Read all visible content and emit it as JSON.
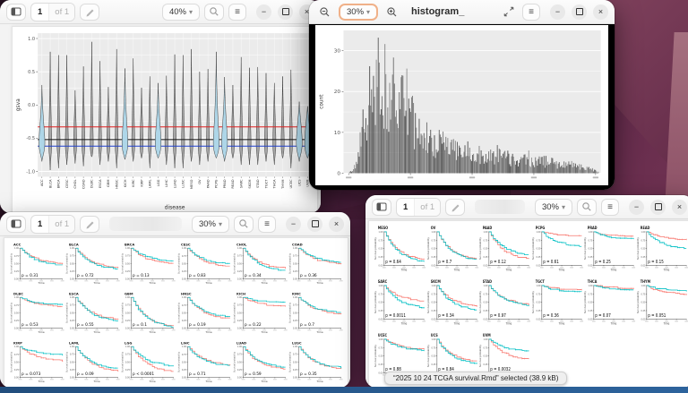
{
  "icons": {
    "caret": "▾",
    "menu": "≡",
    "minimize": "−",
    "close": "×",
    "zoom_out": "−",
    "zoom_in": "+"
  },
  "windows": {
    "violin_viewer": {
      "page": "1",
      "page_of": "of 1",
      "zoom": "40%"
    },
    "image_viewer": {
      "zoom": "30%",
      "title": "histogram_"
    },
    "km_viewer_1": {
      "page": "1",
      "page_of": "of 1",
      "zoom": "30%"
    },
    "km_viewer_2": {
      "page": "1",
      "page_of": "of 1",
      "zoom": "30%"
    }
  },
  "status_pill": {
    "text": "“2025 10 24 TCGA  survival.Rmd” selected (38.9 kB)"
  },
  "chart_data": [
    {
      "type": "violin",
      "title": "",
      "xlabel": "disease",
      "ylabel": "gsva",
      "ylim": [
        -1.08,
        1.08
      ],
      "yticks": [
        1.0,
        0.5,
        0.0,
        -0.5,
        -1.0
      ],
      "ytick_labels": [
        "1.0",
        "0.5",
        "0.0",
        "-0.5",
        "-1.0"
      ],
      "categories": [
        "ACC",
        "BLCA",
        "BRCA",
        "CESC",
        "CHOL",
        "COAD",
        "DLBC",
        "ESCA",
        "GBM",
        "HNSC",
        "KICH",
        "KIRC",
        "KIRP",
        "LAML",
        "LGG",
        "LIHC",
        "LUAD",
        "LUSC",
        "MESO",
        "OV",
        "PAAD",
        "PCPG",
        "PRAD",
        "READ",
        "SARC",
        "SKCM",
        "STAD",
        "TGCT",
        "THCA",
        "THYM",
        "UCEC",
        "UCS",
        "UVM"
      ],
      "max_values": [
        0.3,
        0.8,
        0.75,
        0.75,
        0.22,
        0.58,
        0.95,
        0.66,
        0.27,
        0.84,
        0.55,
        0.7,
        0.26,
        0.43,
        0.33,
        0.44,
        0.76,
        0.75,
        0.84,
        0.5,
        0.54,
        0.8,
        0.42,
        0.3,
        0.72,
        0.56,
        0.57,
        0.48,
        0.33,
        0.43,
        0.53,
        0.05,
        -0.02
      ],
      "min_values": [
        -0.85,
        -0.98,
        -0.95,
        -0.9,
        -0.88,
        -0.92,
        -0.78,
        -0.9,
        -0.85,
        -0.95,
        -0.82,
        -0.85,
        -0.8,
        -0.95,
        -0.8,
        -0.9,
        -0.95,
        -0.95,
        -0.85,
        -0.9,
        -0.85,
        -0.8,
        -0.85,
        -0.8,
        -0.9,
        -0.9,
        -0.9,
        -0.85,
        -0.9,
        -0.8,
        -0.95,
        -0.85,
        -0.8
      ],
      "highlighted": [
        "ACC",
        "KICH",
        "LGG",
        "PCPG",
        "PRAD",
        "UCS",
        "UVM"
      ],
      "highlight_fill": "#aed6e8",
      "violin_fill": "#8f8f8f",
      "panel_color": "#ebebeb",
      "hlines": [
        {
          "y": -0.33,
          "color": "#e02020"
        },
        {
          "y": -0.52,
          "color": "#111111"
        },
        {
          "y": -0.62,
          "color": "#2040cc"
        }
      ]
    },
    {
      "type": "histogram",
      "ylabel": "count",
      "yticks": [
        0,
        10,
        20,
        30
      ],
      "ylim": [
        0,
        35
      ],
      "bar_color": "#484848",
      "panel_color": "#ebebeb",
      "n_bins": 270,
      "shape": "right-skewed, peak ~34 at ~15% of x-range, long sparse tail to right edge",
      "envelope": [
        [
          0.02,
          0
        ],
        [
          0.05,
          3
        ],
        [
          0.07,
          13
        ],
        [
          0.09,
          21
        ],
        [
          0.11,
          27
        ],
        [
          0.13,
          31
        ],
        [
          0.155,
          34
        ],
        [
          0.17,
          30
        ],
        [
          0.19,
          29
        ],
        [
          0.22,
          26
        ],
        [
          0.25,
          21
        ],
        [
          0.28,
          17
        ],
        [
          0.32,
          13
        ],
        [
          0.36,
          11
        ],
        [
          0.4,
          9
        ],
        [
          0.45,
          8
        ],
        [
          0.5,
          7
        ],
        [
          0.55,
          6
        ],
        [
          0.6,
          6
        ],
        [
          0.65,
          5
        ],
        [
          0.7,
          5
        ],
        [
          0.75,
          4
        ],
        [
          0.8,
          4
        ],
        [
          0.85,
          3
        ],
        [
          0.9,
          3
        ],
        [
          0.94,
          2
        ],
        [
          0.975,
          1
        ],
        [
          1.0,
          0
        ]
      ]
    },
    {
      "type": "km_grid",
      "cols": 6,
      "ylabel": "Survival probability",
      "xlabel": "Time",
      "ytick_labels": [
        "1.00",
        "0.75",
        "0.50",
        "0.25",
        "0.00"
      ],
      "curve_colors": {
        "red": "#F8766D",
        "teal": "#00BFC4"
      },
      "plots": [
        {
          "title": "ACC",
          "p": "p = 0.31",
          "end_red": 0.52,
          "end_teal": 0.46
        },
        {
          "title": "BLCA",
          "p": "p = 0.72",
          "end_red": 0.38,
          "end_teal": 0.33
        },
        {
          "title": "BRCA",
          "p": "p = 0.13",
          "end_red": 0.5,
          "end_teal": 0.6
        },
        {
          "title": "CESC",
          "p": "p = 0.83",
          "end_red": 0.42,
          "end_teal": 0.5
        },
        {
          "title": "CHOL",
          "p": "p = 0.34",
          "end_red": 0.35,
          "end_teal": 0.28
        },
        {
          "title": "COAD",
          "p": "p = 0.36",
          "end_red": 0.5,
          "end_teal": 0.56
        },
        {
          "title": "DLBC",
          "p": "p = 0.53",
          "end_red": 0.72,
          "end_teal": 0.78
        },
        {
          "title": "ESCA",
          "p": "p = 0.55",
          "end_red": 0.3,
          "end_teal": 0.25
        },
        {
          "title": "GBM",
          "p": "p = 0.1",
          "end_red": 0.07,
          "end_teal": 0.05
        },
        {
          "title": "HNSC",
          "p": "p = 0.19",
          "end_red": 0.32,
          "end_teal": 0.38
        },
        {
          "title": "KICH",
          "p": "p = 0.22",
          "end_red": 0.72,
          "end_teal": 0.86
        },
        {
          "title": "KIRC",
          "p": "p = 0.7",
          "end_red": 0.48,
          "end_teal": 0.52
        },
        {
          "title": "KIRP",
          "p": "p = 0.073",
          "end_red": 0.55,
          "end_teal": 0.75
        },
        {
          "title": "LAML",
          "p": "p = 0.09",
          "end_red": 0.22,
          "end_teal": 0.3
        },
        {
          "title": "LGG",
          "p": "p < 0.0001",
          "end_red": 0.2,
          "end_teal": 0.38
        },
        {
          "title": "LIHC",
          "p": "p = 0.71",
          "end_red": 0.42,
          "end_teal": 0.38
        },
        {
          "title": "LUAD",
          "p": "p = 0.59",
          "end_red": 0.28,
          "end_teal": 0.34
        },
        {
          "title": "LUSC",
          "p": "p = 0.35",
          "end_red": 0.3,
          "end_teal": 0.33
        }
      ]
    },
    {
      "type": "km_grid",
      "cols": 6,
      "ylabel": "Survival probability",
      "xlabel": "Time",
      "ytick_labels": [
        "1.00",
        "0.75",
        "0.50",
        "0.25",
        "0.00"
      ],
      "curve_colors": {
        "red": "#F8766D",
        "teal": "#00BFC4"
      },
      "plots": [
        {
          "title": "MESO",
          "p": "p = 0.64",
          "end_red": 0.18,
          "end_teal": 0.12
        },
        {
          "title": "OV",
          "p": "p = 0.7",
          "end_red": 0.2,
          "end_teal": 0.17
        },
        {
          "title": "PAAD",
          "p": "p = 0.12",
          "end_red": 0.2,
          "end_teal": 0.32
        },
        {
          "title": "PCPG",
          "p": "p = 0.61",
          "end_red": 0.9,
          "end_teal": 0.58
        },
        {
          "title": "PRAD",
          "p": "p = 0.25",
          "end_red": 0.88,
          "end_teal": 0.8
        },
        {
          "title": "READ",
          "p": "p = 0.15",
          "end_red": 0.78,
          "end_teal": 0.52
        },
        {
          "title": "SARC",
          "p": "p = 0.0011",
          "end_red": 0.55,
          "end_teal": 0.35
        },
        {
          "title": "SKCM",
          "p": "p = 0.34",
          "end_red": 0.4,
          "end_teal": 0.28
        },
        {
          "title": "STAD",
          "p": "p = 0.97",
          "end_red": 0.45,
          "end_teal": 0.42
        },
        {
          "title": "TGCT",
          "p": "p = 0.36",
          "end_red": 0.88,
          "end_teal": 0.82
        },
        {
          "title": "THCA",
          "p": "p = 0.07",
          "end_red": 0.93,
          "end_teal": 0.88
        },
        {
          "title": "THYM",
          "p": "p = 0.051",
          "end_red": 0.75,
          "end_teal": 0.86
        },
        {
          "title": "UCEC",
          "p": "p = 0.88",
          "end_red": 0.72,
          "end_teal": 0.68
        },
        {
          "title": "UCS",
          "p": "p = 0.84",
          "end_red": 0.35,
          "end_teal": 0.28
        },
        {
          "title": "UVM",
          "p": "p = 0.0032",
          "end_red": 0.42,
          "end_teal": 0.66
        }
      ]
    }
  ]
}
